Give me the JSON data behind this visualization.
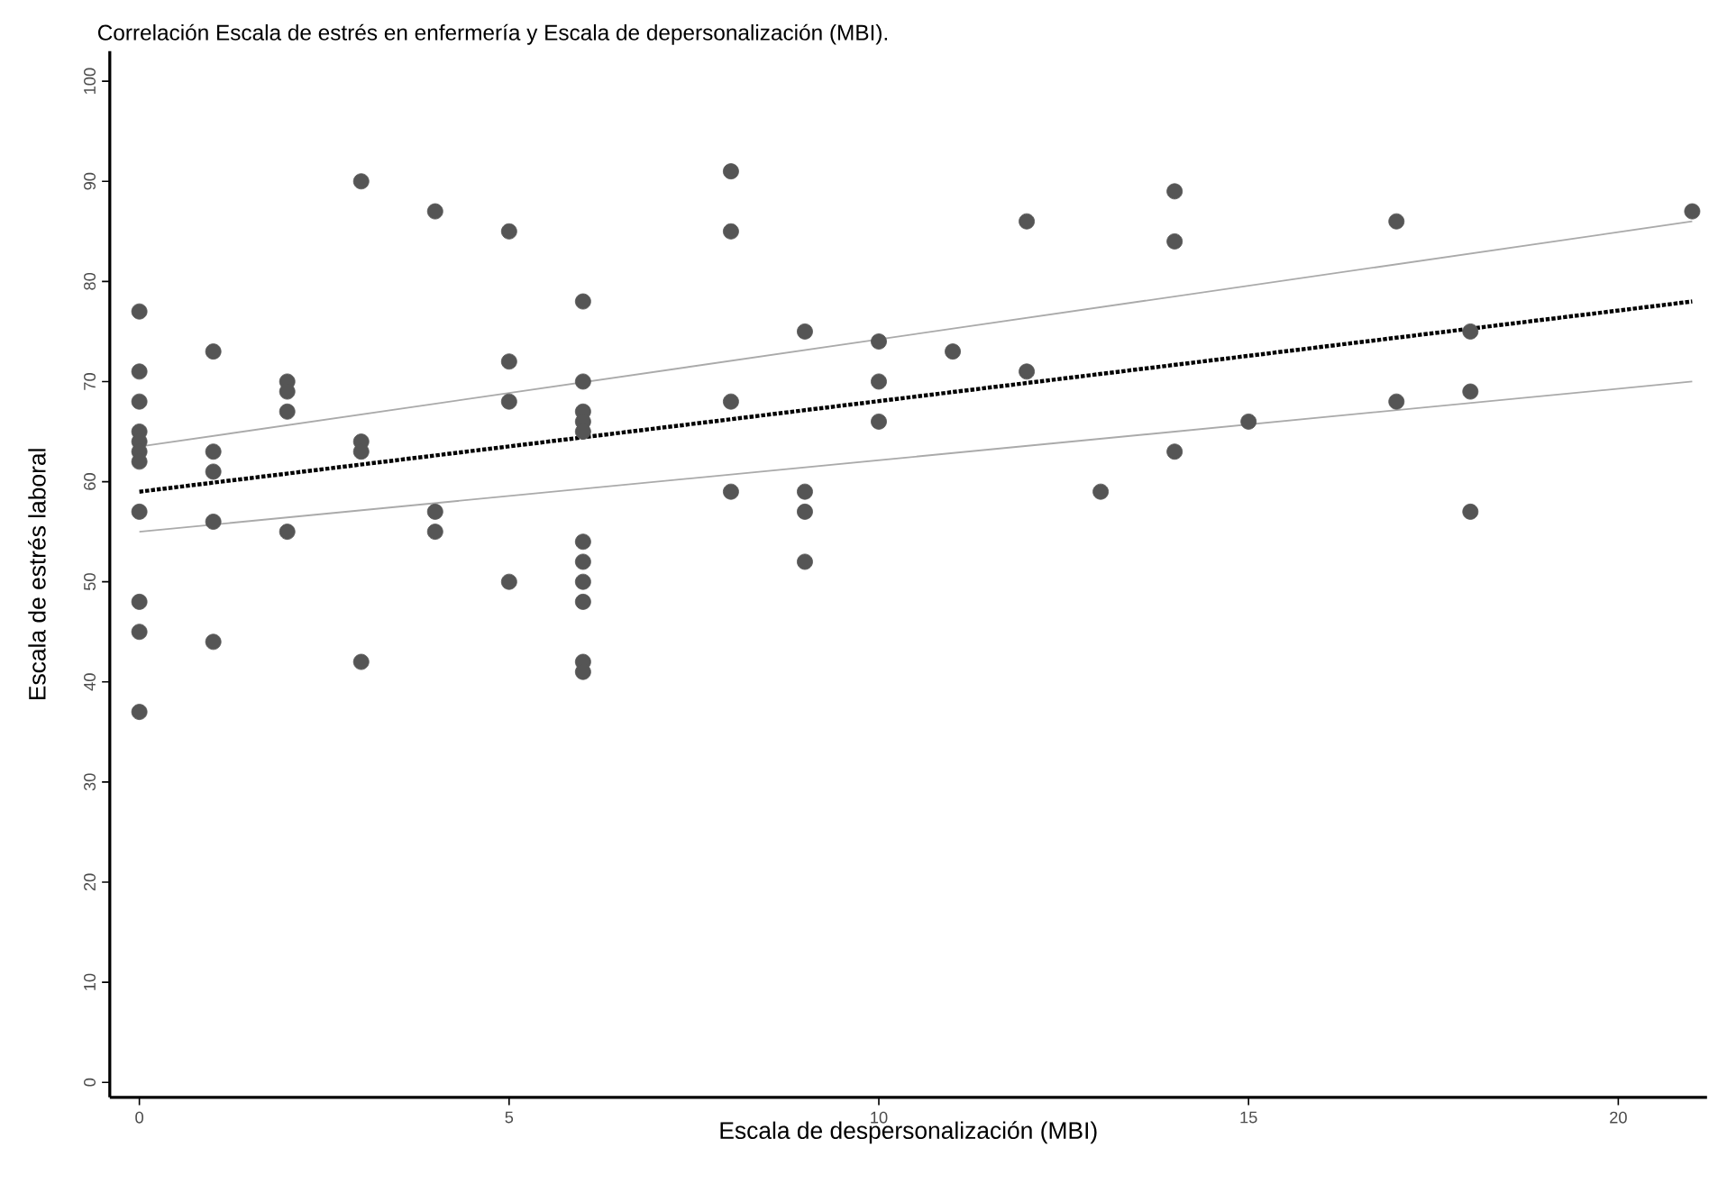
{
  "chart_data": {
    "type": "scatter",
    "title": "Correlación Escala de estrés en enfermería y Escala de depersonalización (MBI).",
    "xlabel": "Escala de despersonalización (MBI)",
    "ylabel": "Escala de estrés laboral",
    "xlim": [
      -0.4,
      21.2
    ],
    "ylim": [
      -1.5,
      103
    ],
    "xticks": [
      0,
      5,
      10,
      15,
      20
    ],
    "yticks": [
      0,
      10,
      20,
      30,
      40,
      50,
      60,
      70,
      80,
      90,
      100
    ],
    "grid": false,
    "marker": "circle",
    "series": [
      {
        "color": "#555555",
        "x": [
          0,
          0,
          0,
          0,
          0,
          0,
          0,
          0,
          0,
          0,
          0,
          1,
          1,
          1,
          1,
          1,
          2,
          2,
          2,
          2,
          3,
          3,
          3,
          3,
          4,
          4,
          4,
          5,
          5,
          5,
          5,
          6,
          6,
          6,
          6,
          6,
          6,
          6,
          6,
          6,
          6,
          6,
          8,
          8,
          8,
          8,
          9,
          9,
          9,
          9,
          10,
          10,
          10,
          11,
          12,
          12,
          13,
          14,
          14,
          14,
          15,
          17,
          17,
          18,
          18,
          18,
          21
        ],
        "values": [
          77,
          71,
          68,
          65,
          64,
          63,
          62,
          57,
          48,
          45,
          37,
          73,
          63,
          61,
          56,
          44,
          70,
          69,
          67,
          55,
          90,
          64,
          63,
          42,
          87,
          57,
          55,
          85,
          72,
          68,
          50,
          78,
          70,
          67,
          66,
          65,
          54,
          52,
          50,
          48,
          42,
          41,
          91,
          85,
          68,
          59,
          75,
          59,
          57,
          52,
          74,
          70,
          66,
          73,
          86,
          71,
          59,
          89,
          84,
          63,
          66,
          86,
          68,
          75,
          69,
          57,
          87
        ]
      },
      {
        "type": "line",
        "color": "#000000",
        "line_style": "dotted",
        "marker": "none",
        "x": [
          0,
          21
        ],
        "values": [
          59,
          78
        ]
      },
      {
        "type": "line",
        "color": "#aaaaaa",
        "line_style": "solid",
        "marker": "none",
        "x": [
          0,
          21
        ],
        "values": [
          63.5,
          86
        ]
      },
      {
        "type": "line",
        "color": "#aaaaaa",
        "line_style": "solid",
        "marker": "none",
        "x": [
          0,
          21
        ],
        "values": [
          55,
          70
        ]
      }
    ]
  }
}
